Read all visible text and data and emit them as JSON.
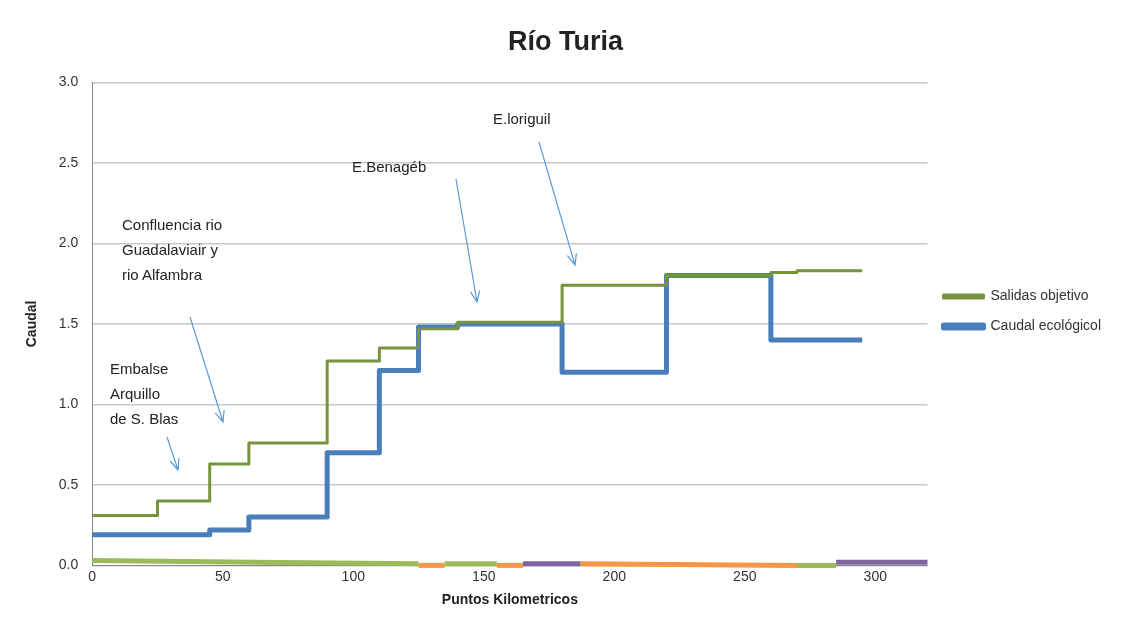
{
  "chart_data": {
    "type": "step",
    "title": "Río Turia",
    "xlabel": "Puntos Kilometricos",
    "ylabel": "Caudal",
    "xlim": [
      0,
      320
    ],
    "xticks": [
      0,
      50,
      100,
      150,
      200,
      250,
      300
    ],
    "ylim": [
      0,
      3
    ],
    "yticks": [
      {
        "value": 0,
        "label": "0.0"
      },
      {
        "value": 0.5,
        "label": "0.5"
      },
      {
        "value": 1,
        "label": "1.0"
      },
      {
        "value": 1.5,
        "label": "1.5"
      },
      {
        "value": 2,
        "label": "2.0"
      },
      {
        "value": 2.5,
        "label": "2.5"
      },
      {
        "value": 3,
        "label": "3.0"
      }
    ],
    "grid": "y",
    "legend": "right",
    "series": [
      {
        "name": "Caudal ecológicol",
        "color": "#4a7ebb",
        "x": [
          0,
          45,
          60,
          90,
          110,
          125,
          140,
          180,
          220,
          260,
          295
        ],
        "values": [
          0.19,
          0.22,
          0.3,
          0.7,
          1.21,
          1.48,
          1.5,
          1.2,
          1.8,
          1.4,
          1.4
        ]
      },
      {
        "name": "Salidas objetivo",
        "color": "#77933c",
        "x": [
          0,
          25,
          45,
          60,
          90,
          110,
          125,
          140,
          180,
          220,
          260,
          270,
          295
        ],
        "values": [
          0.31,
          0.4,
          0.63,
          0.76,
          1.27,
          1.35,
          1.47,
          1.51,
          1.74,
          1.8,
          1.82,
          1.83,
          1.83
        ]
      },
      {
        "type": "line",
        "color": "#9bbb59",
        "x": [
          0,
          125
        ],
        "values": [
          0.03,
          0.01
        ]
      },
      {
        "type": "line",
        "color": "#f79646",
        "x": [
          125,
          135
        ],
        "values": [
          0,
          0
        ]
      },
      {
        "type": "line",
        "color": "#9bbb59",
        "x": [
          135,
          155
        ],
        "values": [
          0.01,
          0.01
        ]
      },
      {
        "type": "line",
        "color": "#f79646",
        "x": [
          155,
          165
        ],
        "values": [
          0,
          0
        ]
      },
      {
        "type": "line",
        "color": "#8064a2",
        "x": [
          165,
          187
        ],
        "values": [
          0.01,
          0.01
        ]
      },
      {
        "type": "line",
        "color": "#f79646",
        "x": [
          187,
          270
        ],
        "values": [
          0.01,
          0
        ]
      },
      {
        "type": "line",
        "color": "#9bbb59",
        "x": [
          270,
          285
        ],
        "values": [
          0,
          0
        ]
      },
      {
        "type": "line",
        "color": "#8064a2",
        "x": [
          285,
          320
        ],
        "values": [
          0.02,
          0.02
        ]
      }
    ],
    "annotations": [
      "Embalse\nArquillo\nde S. Blas",
      "Confluencia rio\nGuadalaviair y\nrio Alfambra",
      "E.Benagéb",
      "E.loriguil"
    ]
  }
}
